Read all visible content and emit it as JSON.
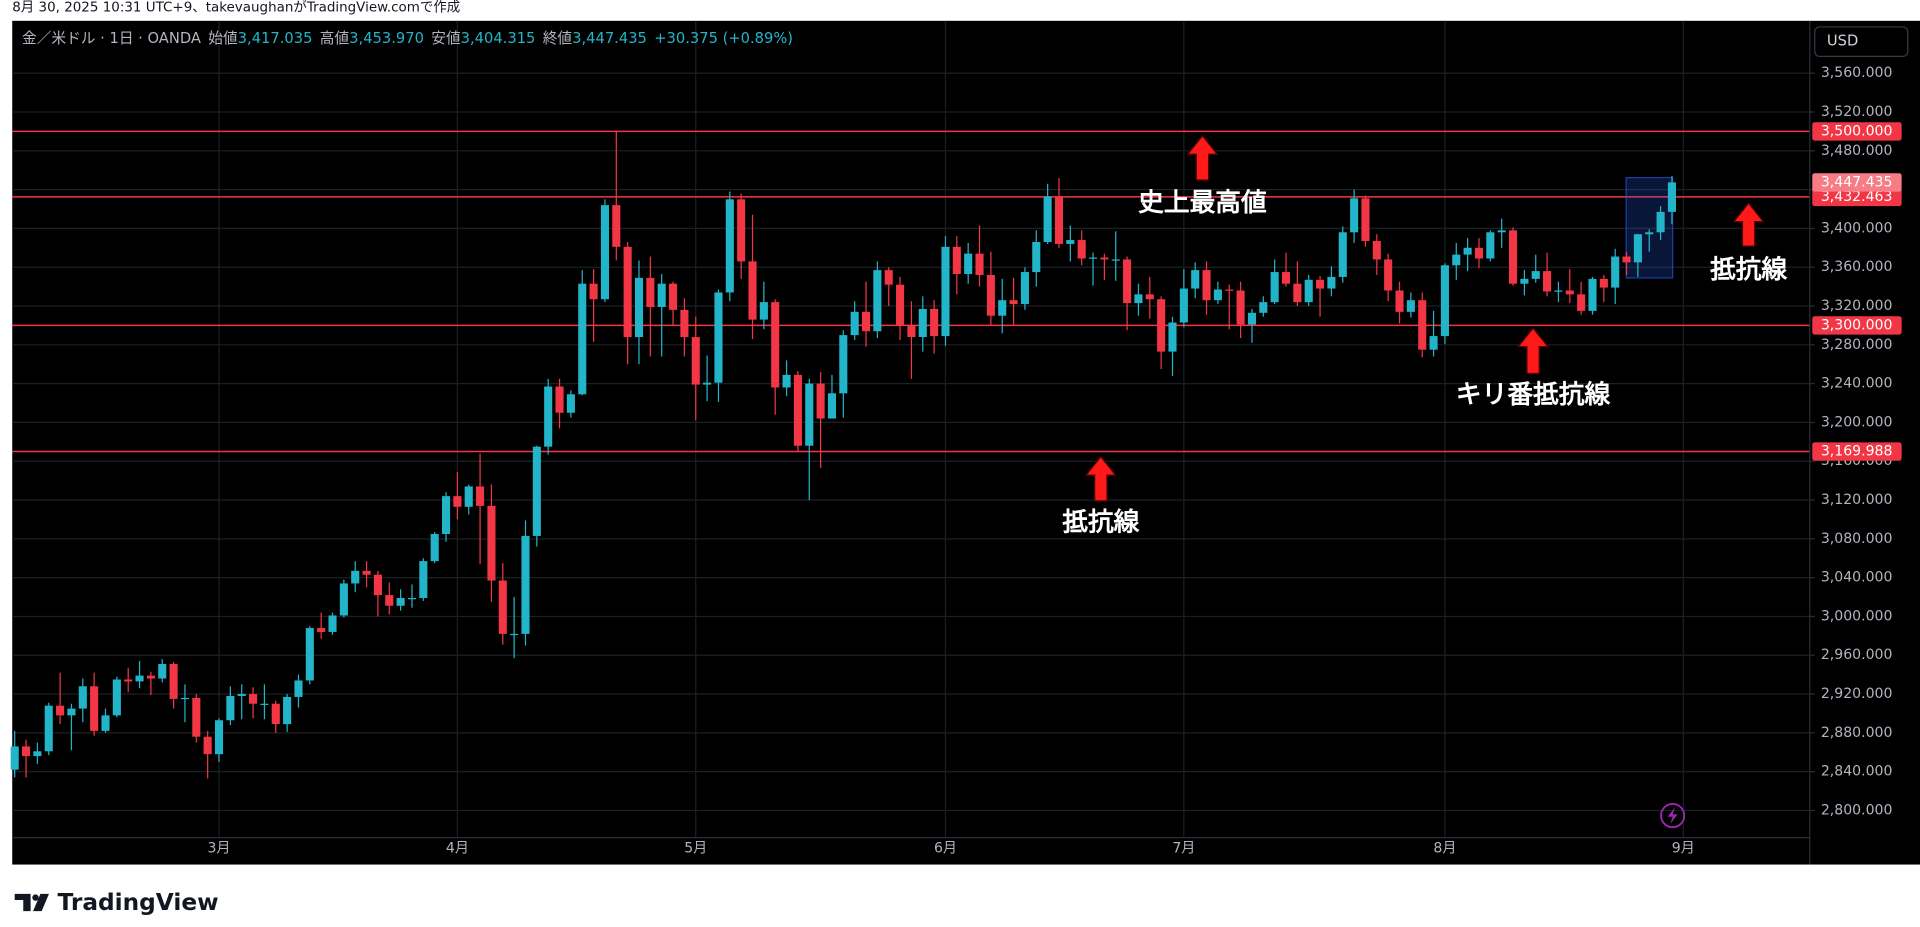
{
  "caption": "8月 30, 2025 10:31 UTC+9、takevaughanがTradingView.comで作成",
  "brand": "TradingView",
  "chart_data": {
    "type": "candlestick",
    "currency": "USD",
    "legend": {
      "symbol": "金／米ドル · 1日 · OANDA",
      "open_label": "始値",
      "open": "3,417.035",
      "high_label": "高値",
      "high": "3,453.970",
      "low_label": "安値",
      "low": "3,404.315",
      "close_label": "終値",
      "close": "3,447.435",
      "change": "+30.375 (+0.89%)"
    },
    "categories": [
      null,
      null,
      null,
      null,
      null,
      null,
      null,
      null,
      null,
      null,
      null,
      null,
      null,
      null,
      null,
      null,
      null,
      null,
      "3月",
      null,
      null,
      null,
      null,
      null,
      null,
      null,
      null,
      null,
      null,
      null,
      null,
      null,
      null,
      null,
      null,
      null,
      null,
      null,
      null,
      "4月",
      null,
      null,
      null,
      null,
      null,
      null,
      null,
      null,
      null,
      null,
      null,
      null,
      null,
      null,
      null,
      null,
      null,
      null,
      null,
      null,
      "5月",
      null,
      null,
      null,
      null,
      null,
      null,
      null,
      null,
      null,
      null,
      null,
      null,
      null,
      null,
      null,
      null,
      null,
      null,
      null,
      null,
      null,
      "6月",
      null,
      null,
      null,
      null,
      null,
      null,
      null,
      null,
      null,
      null,
      null,
      null,
      null,
      null,
      null,
      null,
      null,
      null,
      null,
      null,
      "7月",
      null,
      null,
      null,
      null,
      null,
      null,
      null,
      null,
      null,
      null,
      null,
      null,
      null,
      null,
      null,
      null,
      null,
      null,
      null,
      null,
      null,
      null,
      "8月",
      null,
      null,
      null,
      null,
      null,
      null,
      null,
      null,
      null,
      null,
      null,
      null,
      null,
      null,
      null,
      null,
      null,
      null,
      null,
      null,
      "9月"
    ],
    "series": [
      {
        "name": "金／米ドル",
        "up_color": "#22b5c9",
        "down_color": "#f23645",
        "ohlc": [
          [
            2842,
            2882,
            2834,
            2866
          ],
          [
            2866,
            2873,
            2834,
            2856
          ],
          [
            2856,
            2870,
            2848,
            2861
          ],
          [
            2861,
            2911,
            2857,
            2908
          ],
          [
            2908,
            2942,
            2889,
            2898
          ],
          [
            2898,
            2910,
            2862,
            2905
          ],
          [
            2905,
            2936,
            2891,
            2928
          ],
          [
            2928,
            2942,
            2877,
            2882
          ],
          [
            2882,
            2905,
            2880,
            2898
          ],
          [
            2898,
            2938,
            2896,
            2935
          ],
          [
            2935,
            2947,
            2922,
            2933
          ],
          [
            2933,
            2954,
            2926,
            2939
          ],
          [
            2939,
            2943,
            2919,
            2936
          ],
          [
            2936,
            2956,
            2932,
            2951
          ],
          [
            2951,
            2953,
            2905,
            2915
          ],
          [
            2915,
            2930,
            2891,
            2916
          ],
          [
            2916,
            2920,
            2870,
            2876
          ],
          [
            2876,
            2882,
            2833,
            2858
          ],
          [
            2858,
            2895,
            2850,
            2893
          ],
          [
            2893,
            2928,
            2888,
            2918
          ],
          [
            2918,
            2930,
            2894,
            2920
          ],
          [
            2920,
            2927,
            2895,
            2910
          ],
          [
            2910,
            2930,
            2894,
            2910
          ],
          [
            2910,
            2913,
            2880,
            2889
          ],
          [
            2889,
            2920,
            2881,
            2917
          ],
          [
            2917,
            2940,
            2906,
            2934
          ],
          [
            2934,
            2990,
            2930,
            2988
          ],
          [
            2988,
            3004,
            2977,
            2984
          ],
          [
            2984,
            3004,
            2981,
            3001
          ],
          [
            3001,
            3038,
            2999,
            3034
          ],
          [
            3034,
            3057,
            3025,
            3047
          ],
          [
            3047,
            3057,
            3030,
            3043
          ],
          [
            3043,
            3047,
            3000,
            3022
          ],
          [
            3022,
            3035,
            3002,
            3011
          ],
          [
            3011,
            3028,
            3006,
            3019
          ],
          [
            3019,
            3033,
            3009,
            3019
          ],
          [
            3019,
            3060,
            3016,
            3057
          ],
          [
            3057,
            3087,
            3055,
            3085
          ],
          [
            3085,
            3128,
            3077,
            3124
          ],
          [
            3124,
            3149,
            3100,
            3113
          ],
          [
            3113,
            3136,
            3105,
            3134
          ],
          [
            3134,
            3168,
            3054,
            3114
          ],
          [
            3114,
            3136,
            3015,
            3037
          ],
          [
            3037,
            3055,
            2971,
            2982
          ],
          [
            2982,
            3020,
            2957,
            2982
          ],
          [
            2982,
            3099,
            2970,
            3083
          ],
          [
            3083,
            3176,
            3072,
            3175
          ],
          [
            3175,
            3245,
            3167,
            3237
          ],
          [
            3237,
            3245,
            3194,
            3210
          ],
          [
            3210,
            3233,
            3205,
            3229
          ],
          [
            3229,
            3357,
            3228,
            3343
          ],
          [
            3343,
            3358,
            3283,
            3327
          ],
          [
            3327,
            3430,
            3324,
            3424
          ],
          [
            3424,
            3500,
            3367,
            3381
          ],
          [
            3381,
            3386,
            3260,
            3288
          ],
          [
            3288,
            3367,
            3260,
            3349
          ],
          [
            3349,
            3371,
            3268,
            3319
          ],
          [
            3319,
            3353,
            3268,
            3343
          ],
          [
            3343,
            3345,
            3300,
            3316
          ],
          [
            3316,
            3328,
            3268,
            3288
          ],
          [
            3288,
            3309,
            3202,
            3239
          ],
          [
            3239,
            3269,
            3222,
            3241
          ],
          [
            3241,
            3337,
            3221,
            3334
          ],
          [
            3334,
            3438,
            3325,
            3430
          ],
          [
            3430,
            3436,
            3348,
            3366
          ],
          [
            3366,
            3414,
            3286,
            3306
          ],
          [
            3306,
            3345,
            3296,
            3324
          ],
          [
            3324,
            3327,
            3208,
            3236
          ],
          [
            3236,
            3264,
            3227,
            3249
          ],
          [
            3249,
            3253,
            3170,
            3176
          ],
          [
            3176,
            3245,
            3120,
            3240
          ],
          [
            3240,
            3252,
            3153,
            3204
          ],
          [
            3204,
            3249,
            3204,
            3230
          ],
          [
            3230,
            3295,
            3205,
            3290
          ],
          [
            3290,
            3325,
            3285,
            3314
          ],
          [
            3314,
            3345,
            3278,
            3294
          ],
          [
            3294,
            3366,
            3287,
            3357
          ],
          [
            3357,
            3360,
            3320,
            3342
          ],
          [
            3342,
            3350,
            3285,
            3300
          ],
          [
            3300,
            3325,
            3245,
            3288
          ],
          [
            3288,
            3330,
            3273,
            3317
          ],
          [
            3317,
            3326,
            3271,
            3289
          ],
          [
            3289,
            3392,
            3279,
            3381
          ],
          [
            3381,
            3392,
            3332,
            3353
          ],
          [
            3353,
            3385,
            3343,
            3374
          ],
          [
            3374,
            3403,
            3340,
            3352
          ],
          [
            3352,
            3376,
            3300,
            3310
          ],
          [
            3310,
            3348,
            3292,
            3326
          ],
          [
            3326,
            3349,
            3300,
            3322
          ],
          [
            3322,
            3360,
            3316,
            3355
          ],
          [
            3355,
            3398,
            3340,
            3386
          ],
          [
            3386,
            3446,
            3384,
            3433
          ],
          [
            3433,
            3452,
            3380,
            3384
          ],
          [
            3384,
            3403,
            3366,
            3388
          ],
          [
            3388,
            3398,
            3362,
            3369
          ],
          [
            3369,
            3375,
            3341,
            3370
          ],
          [
            3370,
            3374,
            3347,
            3368
          ],
          [
            3368,
            3397,
            3346,
            3368
          ],
          [
            3368,
            3371,
            3295,
            3323
          ],
          [
            3323,
            3343,
            3310,
            3332
          ],
          [
            3332,
            3350,
            3307,
            3327
          ],
          [
            3327,
            3330,
            3255,
            3273
          ],
          [
            3273,
            3309,
            3248,
            3303
          ],
          [
            3303,
            3358,
            3298,
            3338
          ],
          [
            3338,
            3365,
            3328,
            3357
          ],
          [
            3357,
            3366,
            3311,
            3326
          ],
          [
            3326,
            3345,
            3322,
            3337
          ],
          [
            3337,
            3342,
            3296,
            3336
          ],
          [
            3336,
            3345,
            3287,
            3301
          ],
          [
            3301,
            3317,
            3282,
            3313
          ],
          [
            3313,
            3330,
            3309,
            3324
          ],
          [
            3324,
            3368,
            3322,
            3355
          ],
          [
            3355,
            3375,
            3340,
            3343
          ],
          [
            3343,
            3366,
            3320,
            3324
          ],
          [
            3324,
            3352,
            3320,
            3347
          ],
          [
            3347,
            3351,
            3309,
            3338
          ],
          [
            3338,
            3361,
            3330,
            3350
          ],
          [
            3350,
            3402,
            3344,
            3396
          ],
          [
            3396,
            3440,
            3385,
            3431
          ],
          [
            3431,
            3434,
            3381,
            3387
          ],
          [
            3387,
            3394,
            3352,
            3368
          ],
          [
            3368,
            3374,
            3325,
            3336
          ],
          [
            3336,
            3345,
            3302,
            3314
          ],
          [
            3314,
            3334,
            3308,
            3326
          ],
          [
            3326,
            3334,
            3267,
            3275
          ],
          [
            3275,
            3315,
            3268,
            3289
          ],
          [
            3289,
            3364,
            3281,
            3362
          ],
          [
            3362,
            3385,
            3347,
            3373
          ],
          [
            3373,
            3390,
            3356,
            3380
          ],
          [
            3380,
            3390,
            3359,
            3369
          ],
          [
            3369,
            3398,
            3366,
            3396
          ],
          [
            3396,
            3410,
            3380,
            3398
          ],
          [
            3398,
            3401,
            3341,
            3343
          ],
          [
            3343,
            3357,
            3331,
            3348
          ],
          [
            3348,
            3373,
            3344,
            3356
          ],
          [
            3356,
            3375,
            3330,
            3335
          ],
          [
            3335,
            3345,
            3324,
            3336
          ],
          [
            3336,
            3358,
            3323,
            3332
          ],
          [
            3332,
            3345,
            3311,
            3315
          ],
          [
            3315,
            3350,
            3311,
            3348
          ],
          [
            3348,
            3352,
            3324,
            3339
          ],
          [
            3339,
            3379,
            3322,
            3371
          ],
          [
            3371,
            3376,
            3352,
            3365
          ],
          [
            3365,
            3394,
            3350,
            3394
          ],
          [
            3394,
            3399,
            3376,
            3396
          ],
          [
            3396,
            3423,
            3388,
            3417
          ],
          [
            3417.035,
            3453.97,
            3404.315,
            3447.435
          ],
          null
        ]
      }
    ],
    "ylim": [
      2772,
      3614
    ],
    "yticks": [
      {
        "value": 2800,
        "label": "2,800.000"
      },
      {
        "value": 2840,
        "label": "2,840.000"
      },
      {
        "value": 2880,
        "label": "2,880.000"
      },
      {
        "value": 2920,
        "label": "2,920.000"
      },
      {
        "value": 2960,
        "label": "2,960.000"
      },
      {
        "value": 3000,
        "label": "3,000.000"
      },
      {
        "value": 3040,
        "label": "3,040.000"
      },
      {
        "value": 3080,
        "label": "3,080.000"
      },
      {
        "value": 3120,
        "label": "3,120.000"
      },
      {
        "value": 3160,
        "label": "3,160.000"
      },
      {
        "value": 3200,
        "label": "3,200.000"
      },
      {
        "value": 3240,
        "label": "3,240.000"
      },
      {
        "value": 3280,
        "label": "3,280.000"
      },
      {
        "value": 3320,
        "label": "3,320.000"
      },
      {
        "value": 3360,
        "label": "3,360.000"
      },
      {
        "value": 3400,
        "label": "3,400.000"
      },
      {
        "value": 3440,
        "label": "3,440.000"
      },
      {
        "value": 3480,
        "label": "3,480.000"
      },
      {
        "value": 3520,
        "label": "3,520.000"
      },
      {
        "value": 3560,
        "label": "3,560.000"
      }
    ],
    "grid": true,
    "hlines": [
      {
        "value": 3500,
        "label": "3,500.000"
      },
      {
        "value": 3432.463,
        "label": "3,432.463"
      },
      {
        "value": 3300,
        "label": "3,300.000"
      },
      {
        "value": 3169.988,
        "label": "3,169.988"
      }
    ],
    "hline_color": "#f23645",
    "last_price": {
      "value": 3447.435,
      "label": "3,447.435"
    },
    "annotations": [
      "史上最高値",
      "抵抗線",
      "キリ番抵抗線",
      "抵抗線"
    ]
  }
}
